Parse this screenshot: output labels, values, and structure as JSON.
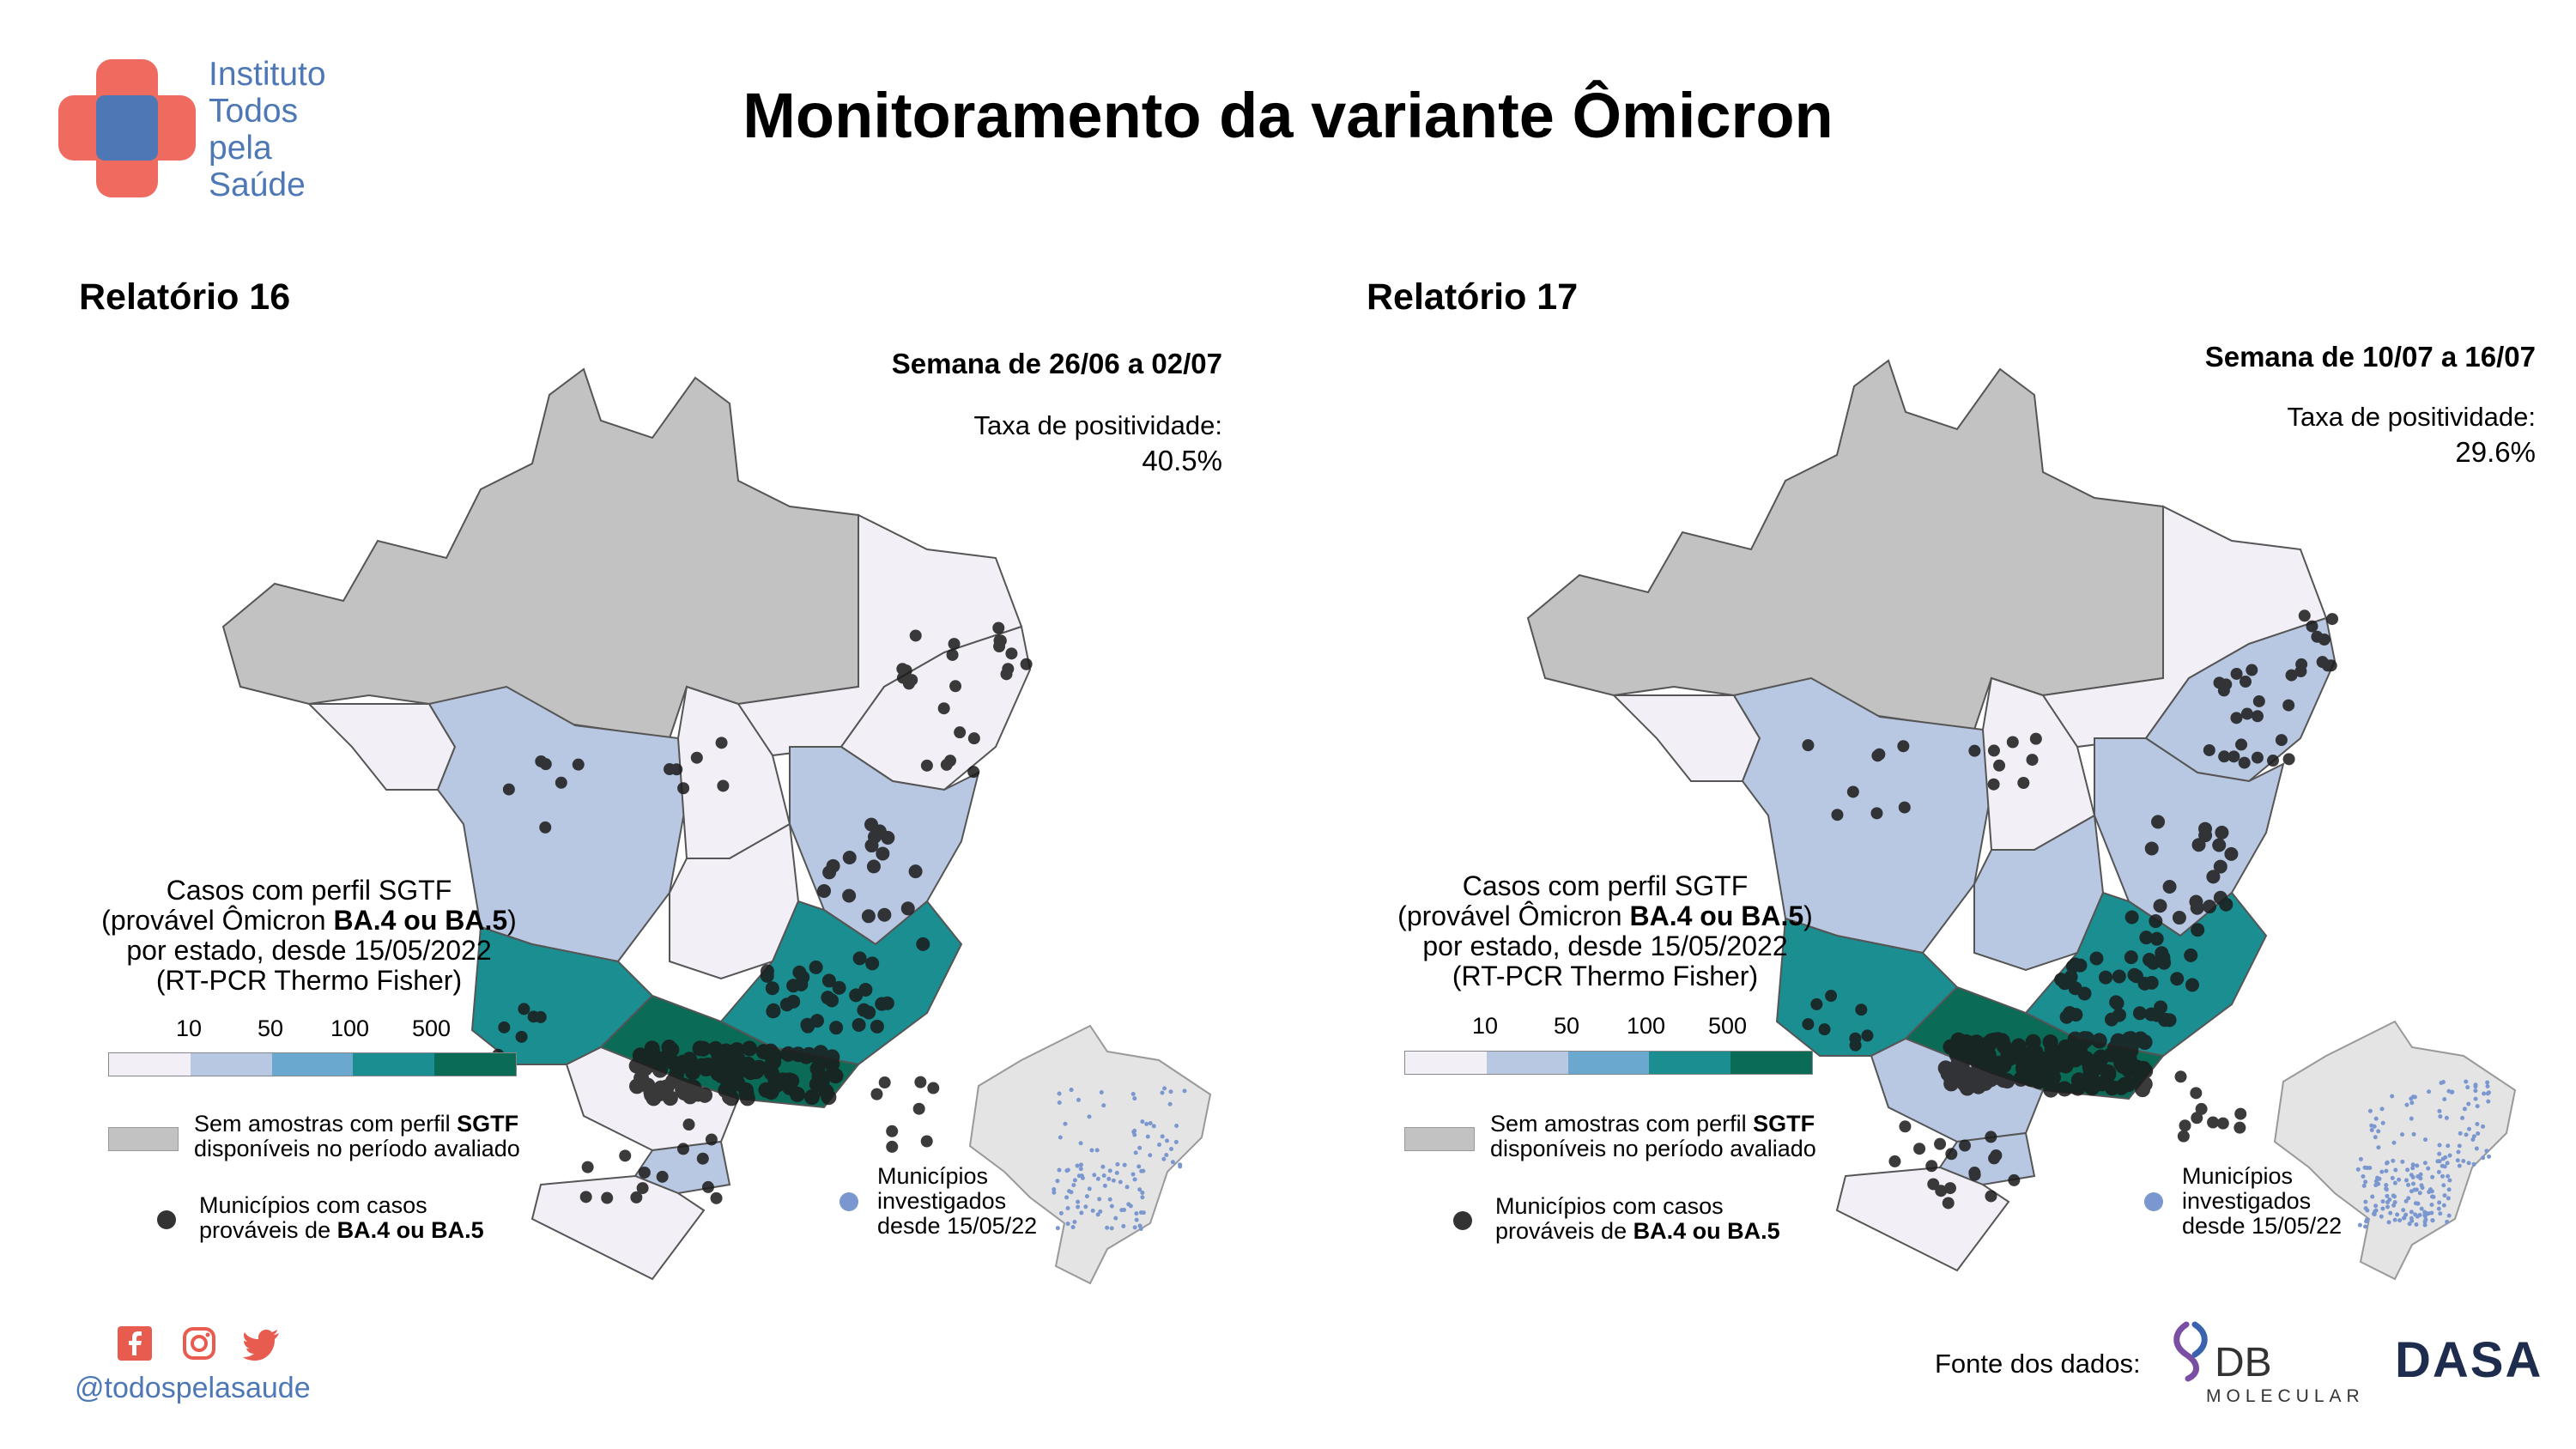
{
  "logo": {
    "lines": [
      "Instituto",
      "Todos",
      "pela",
      "Saúde"
    ]
  },
  "title": "Monitoramento da variante Ômicron",
  "panels": [
    {
      "report": "Relatório 16",
      "week": "Semana de 26/06 a 02/07",
      "positivity_label": "Taxa de positividade:",
      "positivity_value": "40.5%"
    },
    {
      "report": "Relatório 17",
      "week": "Semana de 10/07 a 16/07",
      "positivity_label": "Taxa de positividade:",
      "positivity_value": "29.6%"
    }
  ],
  "legend": {
    "title_line1": "Casos com perfil SGTF",
    "title_line2_pre": "(provável Ômicron ",
    "title_line2_bold": "BA.4 ou BA.5",
    "title_line2_post": ")",
    "title_line3": "por estado, desde 15/05/2022",
    "title_line4": "(RT-PCR Thermo Fisher)",
    "ticks": [
      "10",
      "50",
      "100",
      "500"
    ],
    "scale_colors": [
      "#f3eff7",
      "#b9c8e2",
      "#6aa8d0",
      "#1a8e91",
      "#0a6b57"
    ],
    "no_samples_pre": "Sem amostras com perfil ",
    "no_samples_bold": "SGTF",
    "no_samples_line2": "disponíveis no período avaliado",
    "cases_line1": "Municípios com casos",
    "cases_line2_pre": "prováveis de ",
    "cases_line2_bold": "BA.4 ou BA.5",
    "investigated_line1": "Municípios",
    "investigated_line2": "investigados",
    "investigated_line3": "desde 15/05/22"
  },
  "colors": {
    "gray": "#c2c2c2",
    "lightest": "#f3eff7",
    "light_blue": "#b9c8e2",
    "teal": "#1a8e91",
    "dark_teal": "#0a6b57",
    "dot": "#1a1a1a",
    "investigated_dot": "#7b97cf",
    "social": "#e85c50"
  },
  "footer": {
    "social_icons": [
      "facebook-icon",
      "instagram-icon",
      "twitter-icon"
    ],
    "handle": "@todospelasaude",
    "source_label": "Fonte dos dados:",
    "db_text": "DB",
    "db_sub": "MOLECULAR",
    "dasa_text": "DASA"
  }
}
